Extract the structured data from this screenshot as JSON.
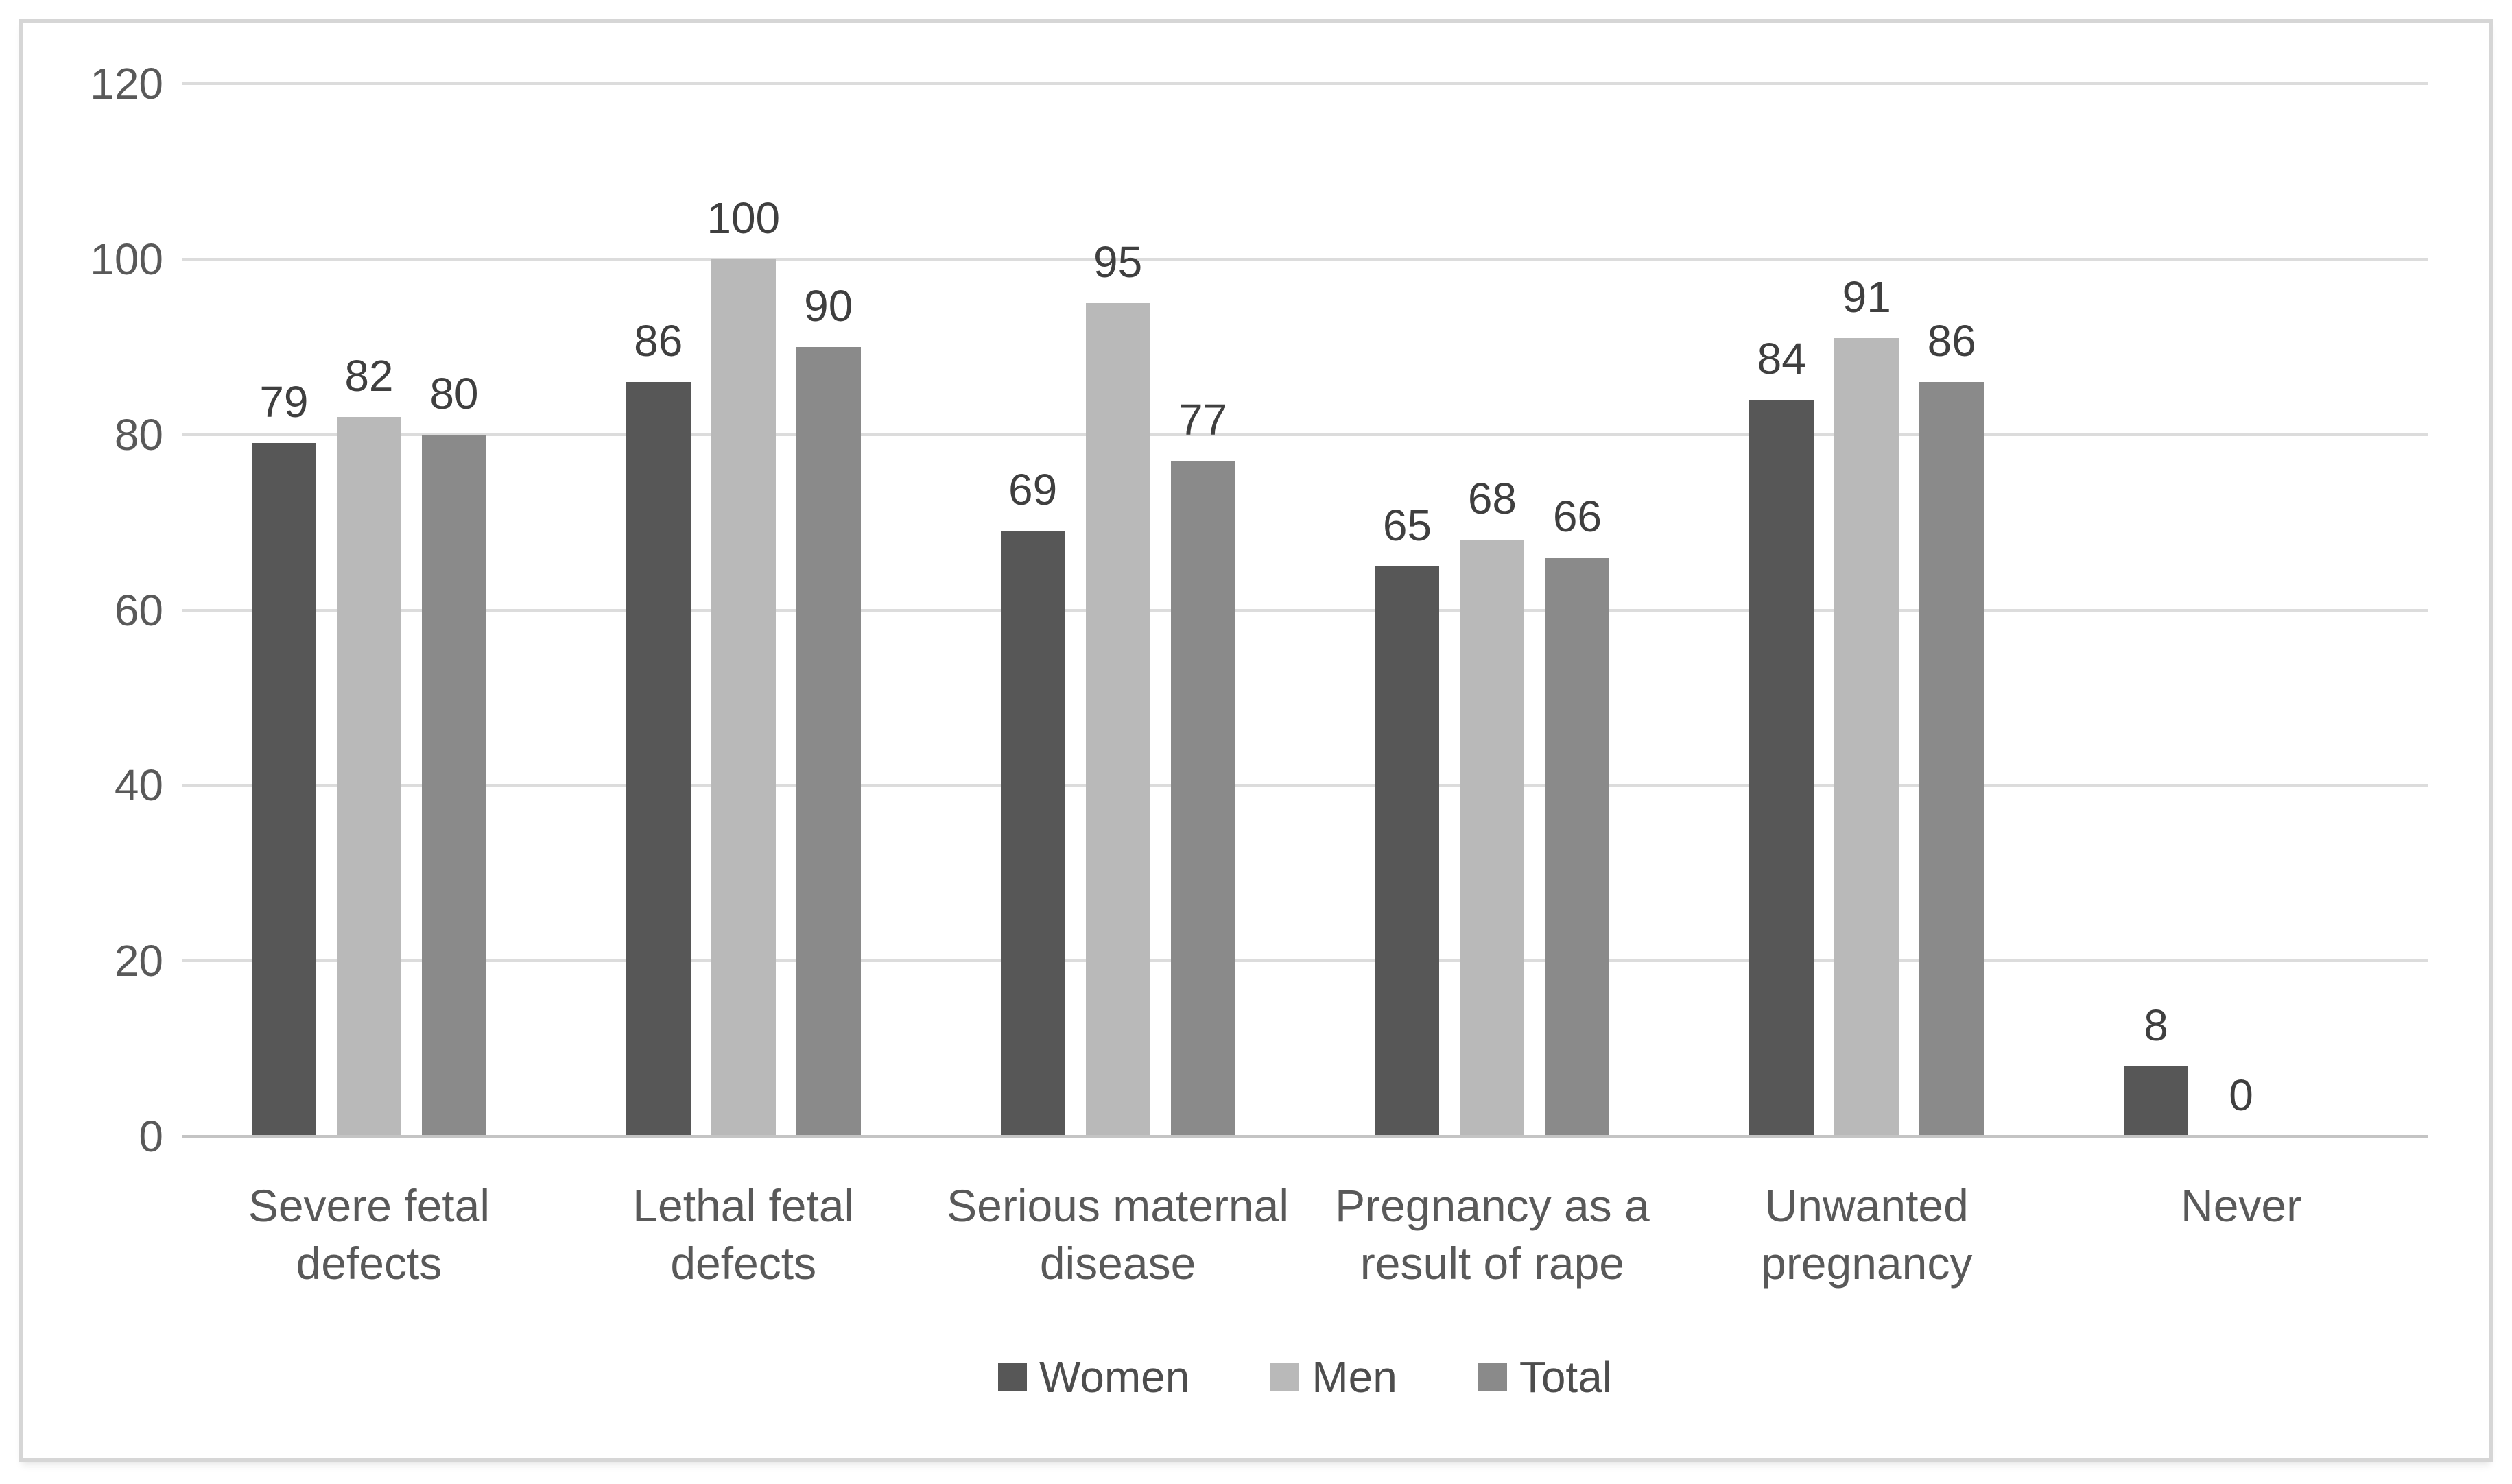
{
  "chart_data": {
    "type": "bar",
    "title": "",
    "xlabel": "",
    "ylabel": "",
    "categories": [
      "Severe fetal defects",
      "Lethal fetal defects",
      "Serious maternal disease",
      "Pregnancy as a result of rape",
      "Unwanted pregnancy",
      "Never"
    ],
    "series": [
      {
        "name": "Women",
        "color": "#575757",
        "values": [
          79,
          86,
          69,
          65,
          84,
          8
        ]
      },
      {
        "name": "Men",
        "color": "#b9b9b9",
        "values": [
          82,
          100,
          95,
          68,
          91,
          0
        ]
      },
      {
        "name": "Total",
        "color": "#8a8a8a",
        "values": [
          80,
          90,
          77,
          66,
          86,
          null
        ]
      }
    ],
    "ylim": [
      0,
      120
    ],
    "yticks": [
      0,
      20,
      40,
      60,
      80,
      100,
      120
    ],
    "grid": true,
    "data_labels": true,
    "legend_position": "bottom",
    "gridline_color": "#dcdcdc",
    "axis_line_color": "#c4c4c4",
    "tick_label_color": "#595959",
    "data_label_color": "#3f3f3f",
    "background_color": "#ffffff",
    "frame_border_color": "#d6d6d6"
  }
}
